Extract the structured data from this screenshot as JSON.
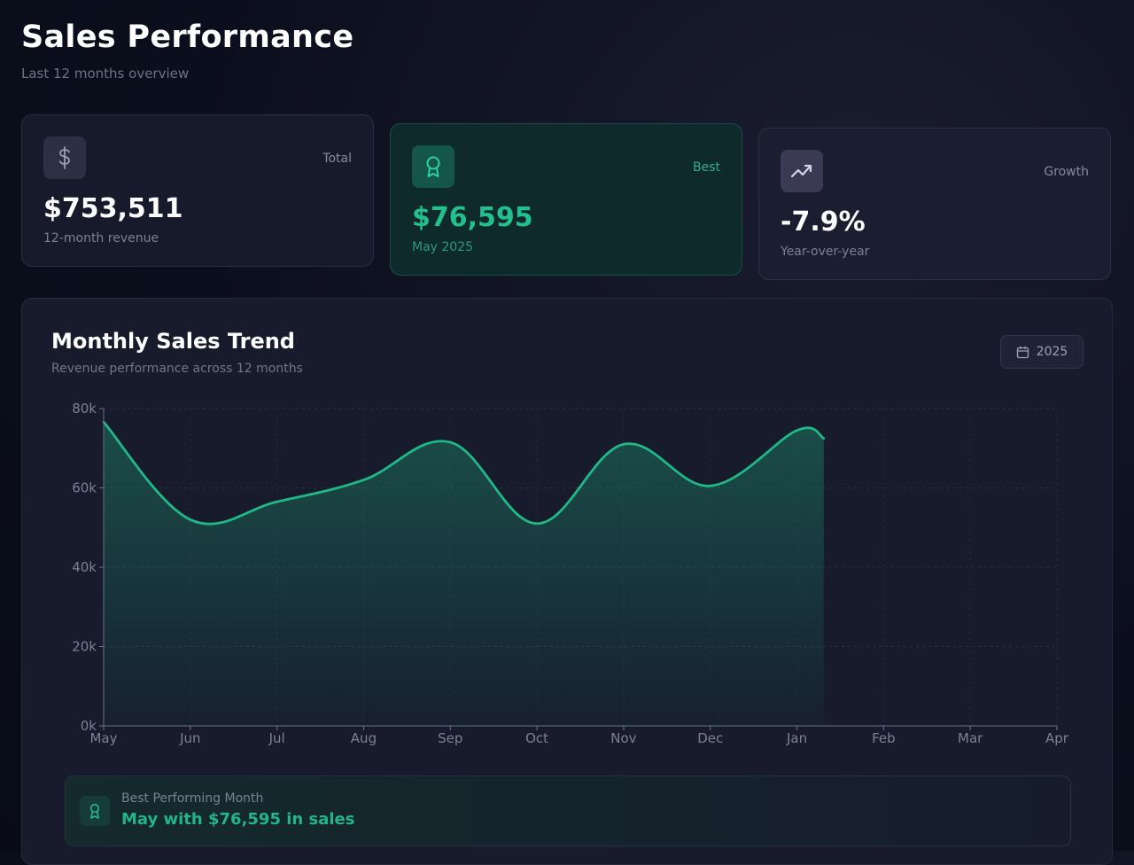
{
  "header": {
    "title": "Sales Performance",
    "subtitle": "Last 12 months overview"
  },
  "cards": {
    "total": {
      "tag": "Total",
      "value": "$753,511",
      "caption": "12-month revenue",
      "icon": "dollar-icon"
    },
    "best": {
      "tag": "Best",
      "value": "$76,595",
      "caption": "May 2025",
      "icon": "award-icon"
    },
    "growth": {
      "tag": "Growth",
      "value": "-7.9%",
      "caption": "Year-over-year",
      "icon": "trending-up-icon"
    }
  },
  "chart_panel": {
    "title": "Monthly Sales Trend",
    "subtitle": "Revenue performance across 12 months",
    "year_button": "2025"
  },
  "banner": {
    "label": "Best Performing Month",
    "text": "May with $76,595 in sales",
    "icon": "award-icon"
  },
  "colors": {
    "accent": "#22c08d",
    "line": "#1fb988",
    "background": "#0b0e1c"
  },
  "chart_data": {
    "type": "area",
    "categories": [
      "May",
      "Jun",
      "Jul",
      "Aug",
      "Sep",
      "Oct",
      "Nov",
      "Dec",
      "Jan",
      "Feb",
      "Mar",
      "Apr"
    ],
    "series": [
      {
        "values": [
          76595,
          52000,
          56500,
          62000,
          71500,
          51000,
          71000,
          60500,
          74500,
          72500,
          null,
          null
        ]
      }
    ],
    "y_ticks": [
      "0k",
      "20k",
      "40k",
      "60k",
      "80k"
    ],
    "ylim": [
      0,
      80000
    ],
    "grid": true,
    "legend": "none"
  }
}
